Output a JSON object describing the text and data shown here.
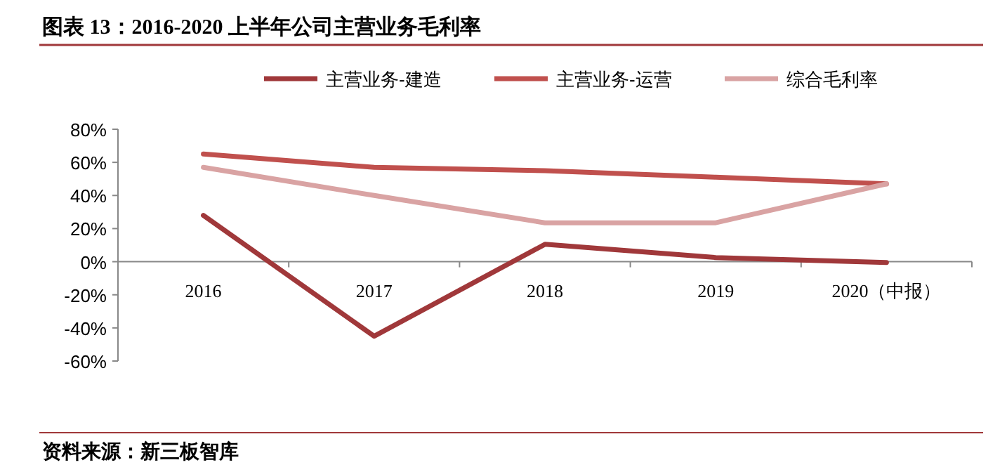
{
  "chart_data": {
    "type": "line",
    "title": "图表 13：2016-2020 上半年公司主营业务毛利率",
    "categories": [
      "2016",
      "2017",
      "2018",
      "2019",
      "2020（中报）"
    ],
    "series": [
      {
        "name": "主营业务-建造",
        "color": "#a0383a",
        "values": [
          28,
          -45,
          10.5,
          2.5,
          -0.5
        ]
      },
      {
        "name": "主营业务-运营",
        "color": "#c0504d",
        "values": [
          65,
          57,
          55,
          51,
          47
        ]
      },
      {
        "name": "综合毛利率",
        "color": "#d9a3a3",
        "values": [
          57,
          40,
          23.5,
          23.5,
          47
        ]
      }
    ],
    "ylim": [
      -60,
      80
    ],
    "yticks": [
      {
        "value": -60,
        "label": "-60%"
      },
      {
        "value": -40,
        "label": "-40%"
      },
      {
        "value": -20,
        "label": "-20%"
      },
      {
        "value": 0,
        "label": "0%"
      },
      {
        "value": 20,
        "label": "20%"
      },
      {
        "value": 40,
        "label": "40%"
      },
      {
        "value": 60,
        "label": "60%"
      },
      {
        "value": 80,
        "label": "80%"
      }
    ],
    "grid": false,
    "legend": "top",
    "marker": "none",
    "line_style": "solid",
    "annotations": [
      "资料来源：新三板智库"
    ]
  }
}
